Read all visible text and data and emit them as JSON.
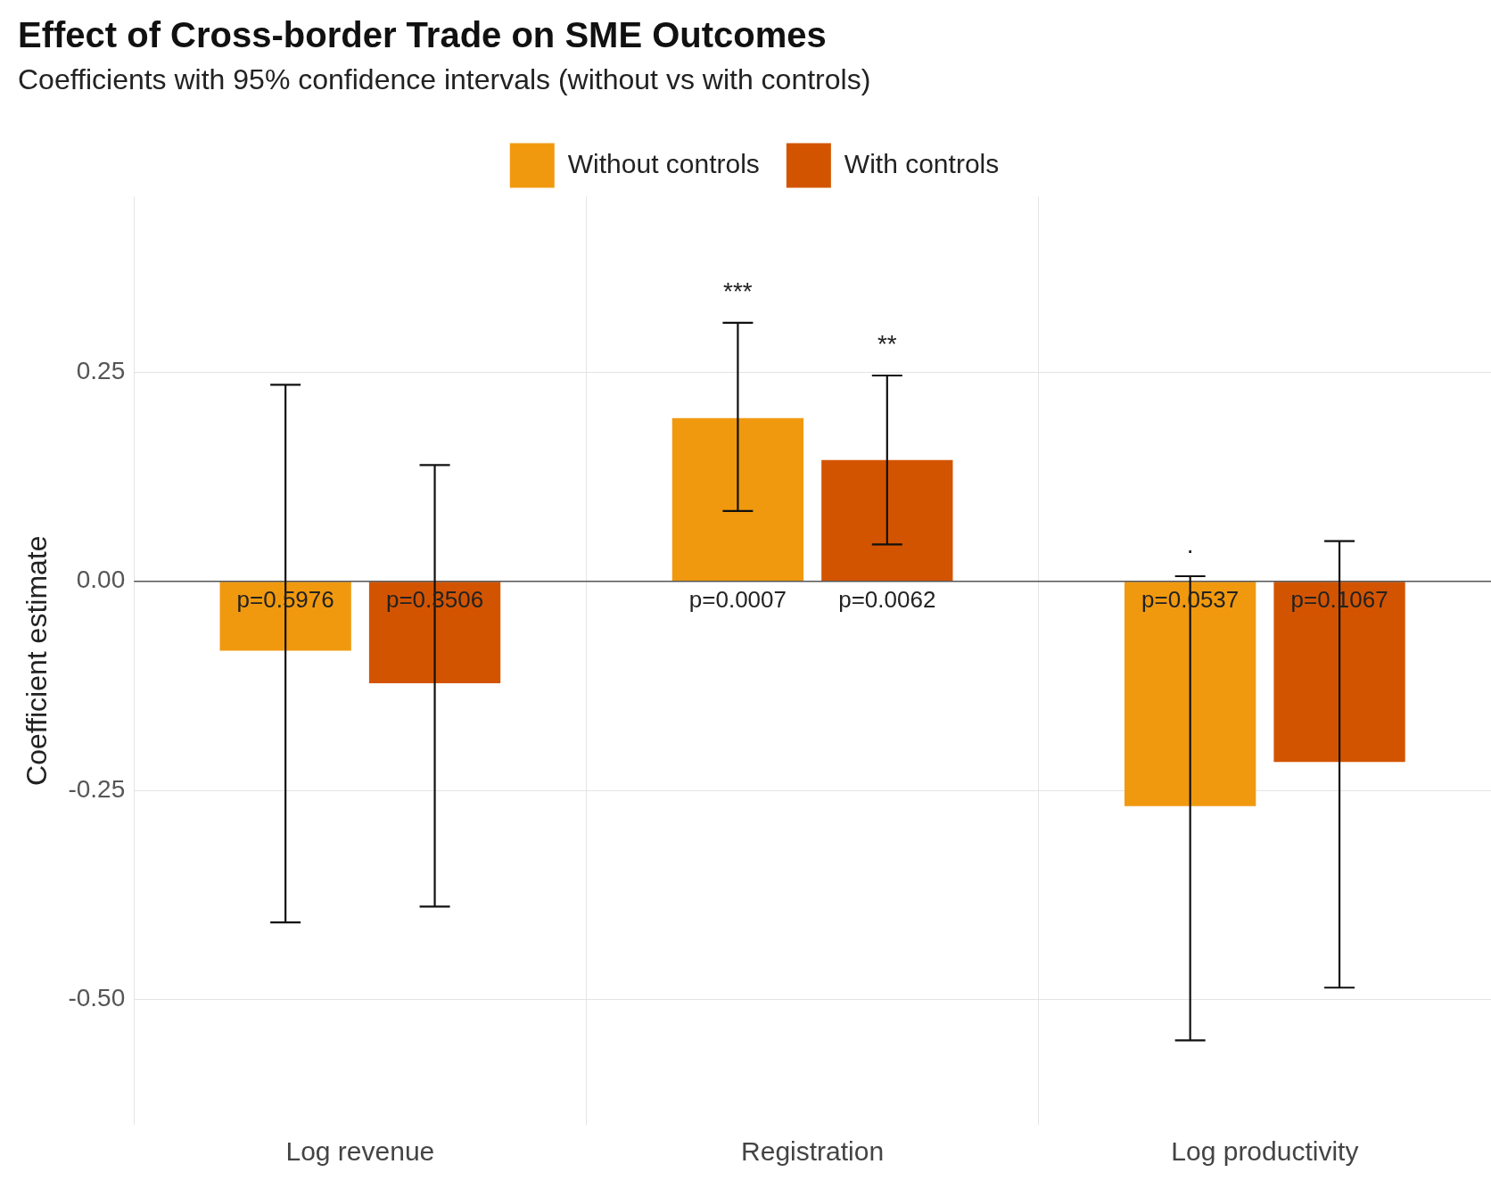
{
  "chart_data": {
    "type": "bar",
    "title": "Effect of Cross-border Trade on SME Outcomes",
    "subtitle": "Coefficients with 95% confidence intervals (without vs with controls)",
    "ylabel": "Coefficient estimate",
    "categories": [
      "Log revenue",
      "Registration",
      "Log productivity"
    ],
    "series": [
      {
        "name": "Without controls",
        "color": "#f0990f",
        "values": [
          -0.083,
          0.195,
          -0.269
        ],
        "errors": [
          [
            -0.408,
            0.235
          ],
          [
            0.084,
            0.309
          ],
          [
            -0.549,
            0.006
          ]
        ]
      },
      {
        "name": "With controls",
        "color": "#d35400",
        "values": [
          -0.122,
          0.145,
          -0.216
        ],
        "errors": [
          [
            -0.389,
            0.139
          ],
          [
            0.044,
            0.246
          ],
          [
            -0.486,
            0.048
          ]
        ]
      }
    ],
    "ylim": [
      -0.65,
      0.46
    ],
    "yticks": [
      {
        "value": -0.5,
        "label": "-0.50"
      },
      {
        "value": -0.25,
        "label": "-0.25"
      },
      {
        "value": 0,
        "label": "0.00"
      },
      {
        "value": 0.25,
        "label": "0.25"
      }
    ],
    "ref_lines": [
      {
        "axis": "y",
        "value": 0,
        "color": "#555555"
      }
    ],
    "annotations": [
      "p=0.5976",
      "p=0.0007",
      "p=0.0537",
      "p=0.3506",
      "p=0.0062",
      "p=0.1067",
      "***",
      "**",
      "."
    ],
    "grid": true,
    "legend": "top"
  }
}
